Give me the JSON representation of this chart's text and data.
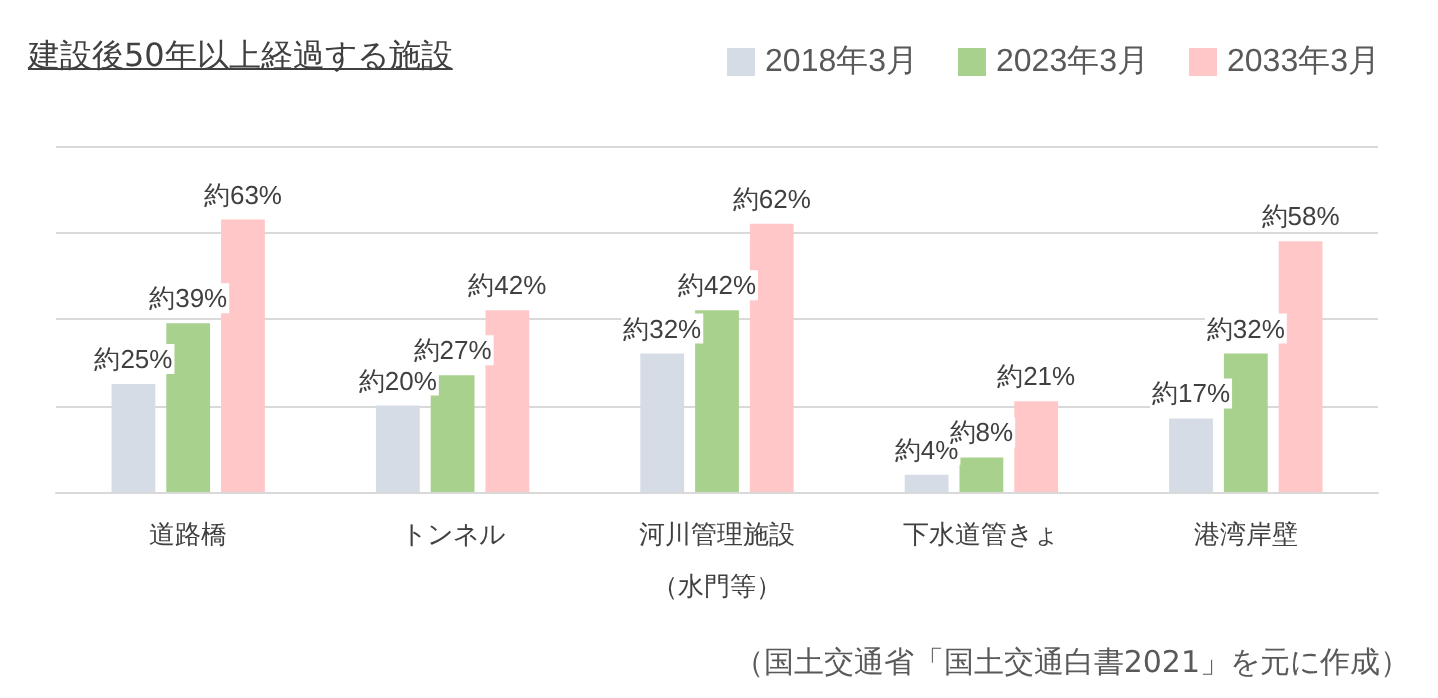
{
  "chart_data": {
    "type": "bar",
    "title": "建設後50年以上経過する施設",
    "categories": [
      "道路橋",
      "トンネル",
      "河川管理施設（水門等）",
      "下水道管きょ",
      "港湾岸壁"
    ],
    "series": [
      {
        "name": "2018年3月",
        "color": "#d6dce5",
        "values": [
          25,
          20,
          32,
          4,
          17
        ],
        "value_labels": [
          "約25%",
          "約20%",
          "約32%",
          "約4%",
          "約17%"
        ]
      },
      {
        "name": "2023年3月",
        "color": "#a9d18e",
        "values": [
          39,
          27,
          42,
          8,
          32
        ],
        "value_labels": [
          "約39%",
          "約27%",
          "約42%",
          "約8%",
          "約32%"
        ]
      },
      {
        "name": "2033年3月",
        "color": "#ffc7c7",
        "values": [
          63,
          42,
          62,
          21,
          58
        ],
        "value_labels": [
          "約63%",
          "約42%",
          "約62%",
          "約21%",
          "約58%"
        ]
      }
    ],
    "ylim": [
      0,
      80
    ],
    "yticks": [
      {
        "value": 0,
        "label": null
      },
      {
        "value": 20,
        "label": null
      },
      {
        "value": 40,
        "label": null
      },
      {
        "value": 60,
        "label": null
      },
      {
        "value": 80,
        "label": null
      }
    ],
    "tick_labels": "x",
    "grid": "y",
    "legend": "top right",
    "annotations": [
      "（国土交通省「国土交通白書2021」を元に作成）"
    ]
  }
}
